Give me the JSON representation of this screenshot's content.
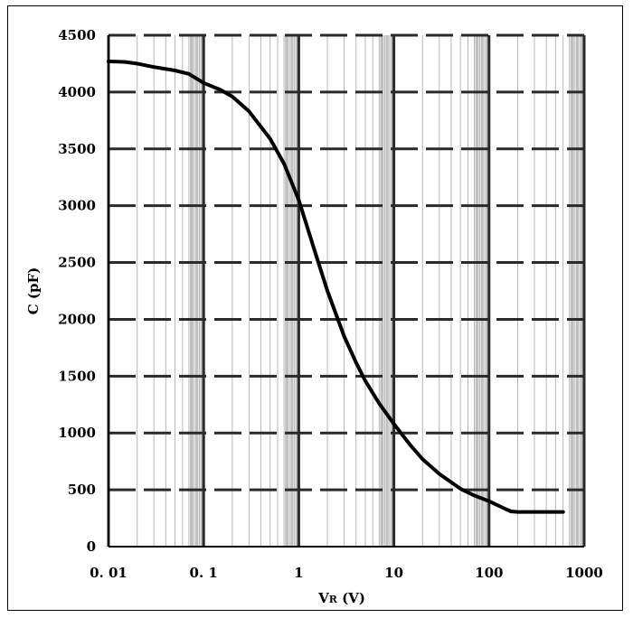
{
  "chart_data": {
    "type": "line",
    "title": "",
    "xlabel_main": "V",
    "xlabel_sub": "R",
    "xlabel_unit": " (V)",
    "ylabel": "C (pF)",
    "x_scale": "log",
    "xlim": [
      0.01,
      1000
    ],
    "ylim": [
      0,
      4500
    ],
    "x_tick_labels": [
      "0. 01",
      "0. 1",
      "1",
      "10",
      "100",
      "1000"
    ],
    "x_tick_values": [
      0.01,
      0.1,
      1,
      10,
      100,
      1000
    ],
    "y_ticks": [
      0,
      500,
      1000,
      1500,
      2000,
      2500,
      3000,
      3500,
      4000,
      4500
    ],
    "grid": true,
    "colors": {
      "line": "#000000",
      "minor_grid": "#b8b8b8",
      "major_grid": "#2a2a2a",
      "band": "#c0c0c0"
    },
    "series": [
      {
        "x": [
          0.01,
          0.015,
          0.02,
          0.03,
          0.05,
          0.07,
          0.1,
          0.15,
          0.2,
          0.3,
          0.5,
          0.7,
          1,
          1.5,
          2,
          3,
          4,
          5,
          7,
          10,
          15,
          20,
          30,
          50,
          70,
          100,
          150,
          170,
          200,
          300,
          500,
          600
        ],
        "y": [
          4270,
          4265,
          4250,
          4220,
          4190,
          4160,
          4080,
          4020,
          3960,
          3830,
          3590,
          3370,
          3050,
          2580,
          2250,
          1850,
          1620,
          1460,
          1260,
          1080,
          890,
          770,
          640,
          510,
          450,
          400,
          330,
          310,
          305,
          305,
          305,
          305
        ]
      }
    ]
  }
}
